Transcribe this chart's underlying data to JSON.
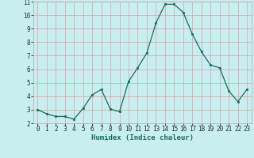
{
  "x": [
    0,
    1,
    2,
    3,
    4,
    5,
    6,
    7,
    8,
    9,
    10,
    11,
    12,
    13,
    14,
    15,
    16,
    17,
    18,
    19,
    20,
    21,
    22,
    23
  ],
  "y": [
    3.0,
    2.7,
    2.5,
    2.5,
    2.3,
    3.1,
    4.1,
    4.5,
    3.05,
    2.85,
    5.1,
    6.1,
    7.2,
    9.4,
    10.8,
    10.8,
    10.2,
    8.6,
    7.3,
    6.3,
    6.1,
    4.4,
    3.6,
    4.5
  ],
  "line_color": "#1a6b5a",
  "marker": "s",
  "marker_size": 2,
  "bg_color": "#c8eef0",
  "grid_color": "#d8a0a0",
  "xlabel": "Humidex (Indice chaleur)",
  "ylim": [
    2,
    11
  ],
  "xlim": [
    -0.5,
    23.5
  ],
  "yticks": [
    2,
    3,
    4,
    5,
    6,
    7,
    8,
    9,
    10,
    11
  ],
  "xticks": [
    0,
    1,
    2,
    3,
    4,
    5,
    6,
    7,
    8,
    9,
    10,
    11,
    12,
    13,
    14,
    15,
    16,
    17,
    18,
    19,
    20,
    21,
    22,
    23
  ],
  "label_fontsize": 6.5,
  "tick_fontsize": 5.5
}
